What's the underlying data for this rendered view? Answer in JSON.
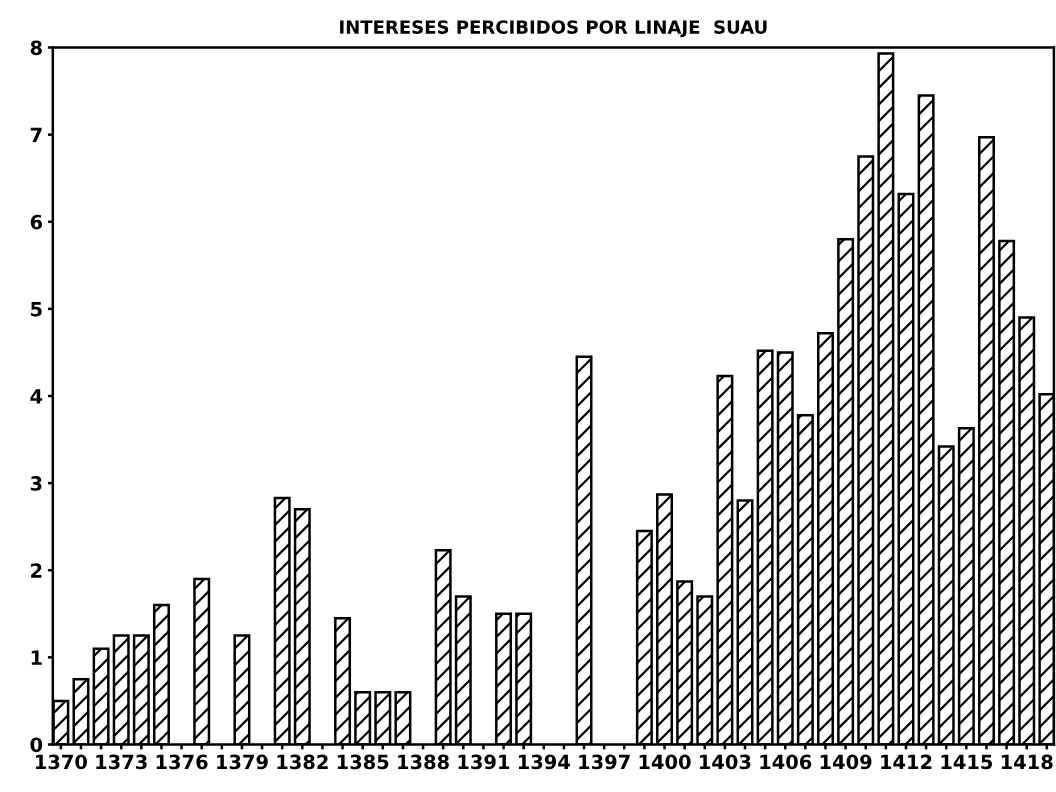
{
  "chart_data": {
    "type": "bar",
    "title": "INTERESES PERCIBIDOS POR LINAJE  SUAU",
    "x": [
      1370,
      1371,
      1372,
      1373,
      1374,
      1375,
      1377,
      1379,
      1381,
      1382,
      1384,
      1385,
      1386,
      1387,
      1389,
      1390,
      1392,
      1393,
      1396,
      1399,
      1400,
      1401,
      1402,
      1403,
      1404,
      1405,
      1406,
      1407,
      1408,
      1409,
      1410,
      1411,
      1412,
      1413,
      1414,
      1415,
      1416,
      1417,
      1418,
      1419
    ],
    "values": [
      0.5,
      0.75,
      1.1,
      1.25,
      1.25,
      1.6,
      1.9,
      1.25,
      2.83,
      2.7,
      1.45,
      0.6,
      0.6,
      0.6,
      2.23,
      1.7,
      1.5,
      1.5,
      4.45,
      2.45,
      2.87,
      1.87,
      1.7,
      4.23,
      2.8,
      4.52,
      4.5,
      3.78,
      4.72,
      5.8,
      6.75,
      7.93,
      6.32,
      7.45,
      3.42,
      3.63,
      6.97,
      5.78,
      4.9,
      4.02
    ],
    "color": "#000000",
    "xlim": [
      1369.6,
      1419.35
    ],
    "xticks": [
      1370,
      {
        "value": 1371,
        "label": null
      },
      {
        "value": 1372,
        "label": null
      },
      1373,
      {
        "value": 1374,
        "label": null
      },
      {
        "value": 1375,
        "label": null
      },
      1376,
      {
        "value": 1377,
        "label": null
      },
      {
        "value": 1378,
        "label": null
      },
      1379,
      {
        "value": 1380,
        "label": null
      },
      {
        "value": 1381,
        "label": null
      },
      1382,
      {
        "value": 1383,
        "label": null
      },
      {
        "value": 1384,
        "label": null
      },
      1385,
      {
        "value": 1386,
        "label": null
      },
      {
        "value": 1387,
        "label": null
      },
      1388,
      {
        "value": 1389,
        "label": null
      },
      {
        "value": 1390,
        "label": null
      },
      1391,
      {
        "value": 1392,
        "label": null
      },
      {
        "value": 1393,
        "label": null
      },
      1394,
      {
        "value": 1395,
        "label": null
      },
      {
        "value": 1396,
        "label": null
      },
      1397,
      {
        "value": 1398,
        "label": null
      },
      {
        "value": 1399,
        "label": null
      },
      1400,
      {
        "value": 1401,
        "label": null
      },
      {
        "value": 1402,
        "label": null
      },
      1403,
      {
        "value": 1404,
        "label": null
      },
      {
        "value": 1405,
        "label": null
      },
      1406,
      {
        "value": 1407,
        "label": null
      },
      {
        "value": 1408,
        "label": null
      },
      1409,
      {
        "value": 1410,
        "label": null
      },
      {
        "value": 1411,
        "label": null
      },
      1412,
      {
        "value": 1413,
        "label": null
      },
      {
        "value": 1414,
        "label": null
      },
      1415,
      {
        "value": 1416,
        "label": null
      },
      {
        "value": 1417,
        "label": null
      },
      1418,
      {
        "value": 1419,
        "label": null
      }
    ],
    "ylim": [
      0,
      8
    ],
    "yticks": [
      0,
      1,
      2,
      3,
      4,
      5,
      6,
      7,
      8
    ],
    "grid": false,
    "legend": false
  }
}
